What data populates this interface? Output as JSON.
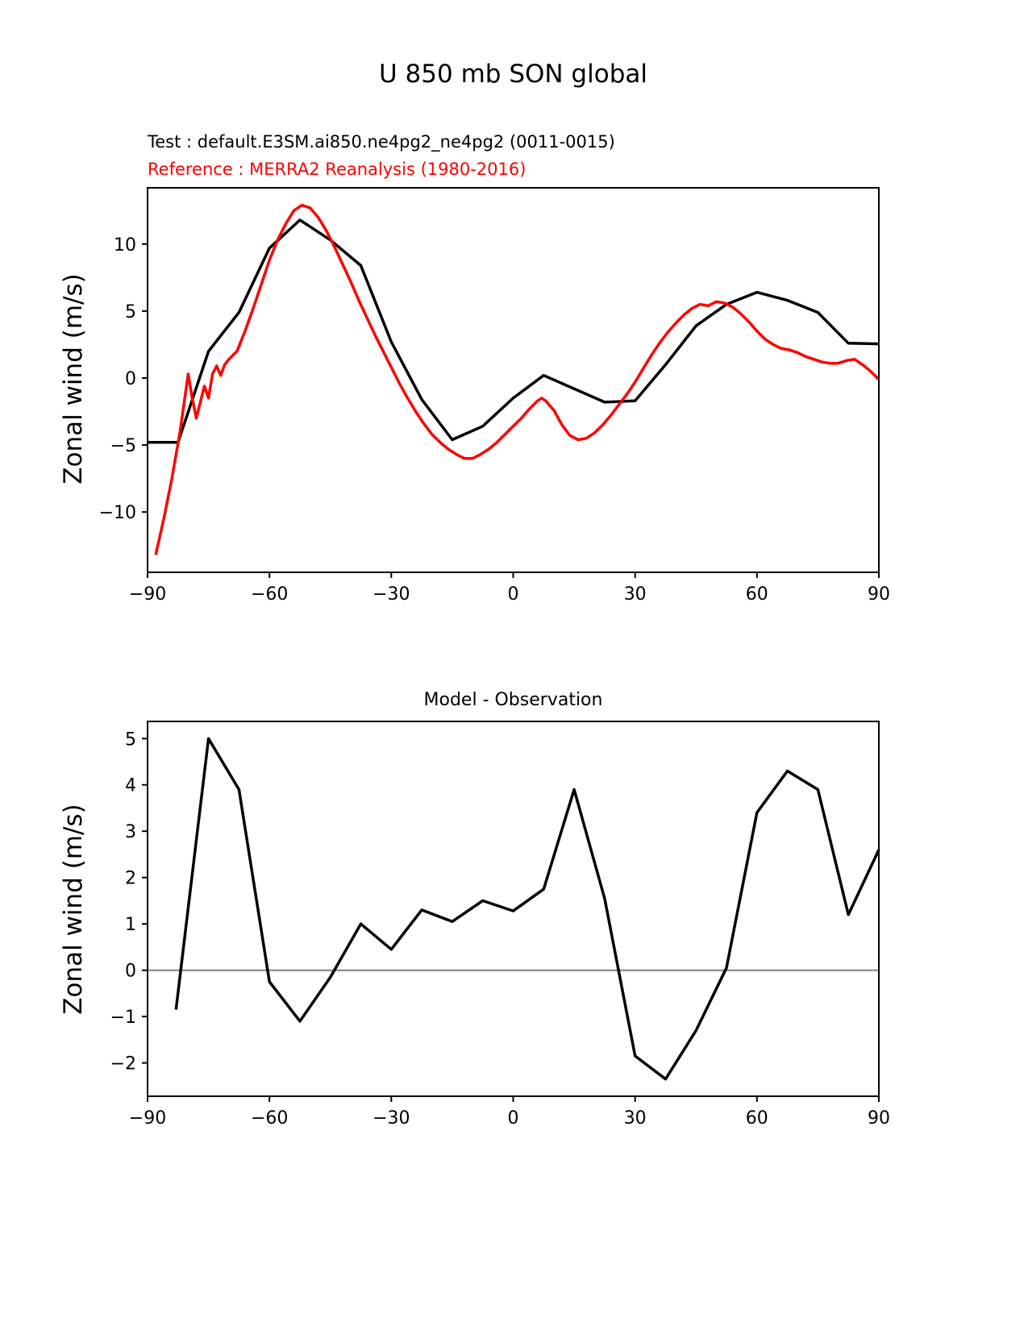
{
  "page_title": "U 850 mb SON global",
  "legend": {
    "test_label": "Test : default.E3SM.ai850.ne4pg2_ne4pg2 (0011-0015)",
    "reference_label": "Reference : MERRA2 Reanalysis (1980-2016)",
    "test_color": "#000000",
    "reference_color": "#ff0000"
  },
  "chart_data": [
    {
      "type": "line",
      "title": "",
      "xlabel": "",
      "ylabel": "Zonal wind (m/s)",
      "xlim": [
        -90,
        90
      ],
      "ylim": [
        -14.5,
        14.2
      ],
      "xticks": [
        -90,
        -60,
        -30,
        0,
        30,
        60,
        90
      ],
      "yticks": [
        -10,
        -5,
        0,
        5,
        10
      ],
      "grid": false,
      "legend_position": "top-left-above-axes",
      "series": [
        {
          "name": "test-model",
          "color": "#000000",
          "width": 3.5,
          "x": [
            -90,
            -82.5,
            -75,
            -67.5,
            -60,
            -52.5,
            -45,
            -37.5,
            -30,
            -22.5,
            -15,
            -7.5,
            0,
            7.5,
            15,
            22.5,
            30,
            37.5,
            45,
            52.5,
            60,
            67.5,
            75,
            82.5,
            90
          ],
          "y": [
            -4.8,
            -4.8,
            2.0,
            4.9,
            9.7,
            11.8,
            10.3,
            8.4,
            2.7,
            -1.6,
            -4.6,
            -3.6,
            -1.5,
            0.2,
            -0.8,
            -1.8,
            -1.7,
            1.0,
            3.9,
            5.5,
            6.4,
            5.8,
            4.9,
            2.6,
            2.55
          ]
        },
        {
          "name": "reference-merra2",
          "color": "#ff0000",
          "width": 3.5,
          "x": [
            -88,
            -86,
            -84,
            -82,
            -80,
            -79,
            -78,
            -77,
            -76,
            -75,
            -74,
            -73,
            -72,
            -71,
            -70,
            -68,
            -66,
            -64,
            -62,
            -60,
            -58,
            -56,
            -54,
            -52,
            -50,
            -48,
            -46,
            -44,
            -42,
            -40,
            -38,
            -36,
            -34,
            -32,
            -30,
            -28,
            -26,
            -24,
            -22,
            -20,
            -18,
            -16,
            -14,
            -12,
            -10,
            -8,
            -6,
            -4,
            -2,
            0,
            2,
            4,
            6,
            7,
            8,
            10,
            12,
            14,
            16,
            18,
            20,
            22,
            24,
            26,
            28,
            30,
            32,
            34,
            36,
            38,
            40,
            42,
            44,
            46,
            48,
            50,
            52,
            54,
            56,
            58,
            60,
            62,
            64,
            66,
            68,
            70,
            72,
            74,
            76,
            78,
            80,
            82,
            84,
            86,
            88,
            90
          ],
          "y": [
            -13.2,
            -10.5,
            -7.5,
            -4.0,
            0.3,
            -1.5,
            -3.0,
            -1.8,
            -0.6,
            -1.5,
            0.3,
            0.9,
            0.2,
            1.0,
            1.4,
            2.0,
            3.5,
            5.2,
            7.0,
            8.8,
            10.3,
            11.5,
            12.5,
            12.9,
            12.7,
            12.0,
            11.0,
            9.8,
            8.5,
            7.2,
            5.8,
            4.5,
            3.2,
            2.0,
            0.8,
            -0.4,
            -1.5,
            -2.5,
            -3.4,
            -4.2,
            -4.8,
            -5.3,
            -5.7,
            -6.0,
            -6.0,
            -5.7,
            -5.3,
            -4.8,
            -4.2,
            -3.6,
            -3.0,
            -2.3,
            -1.7,
            -1.5,
            -1.7,
            -2.4,
            -3.5,
            -4.3,
            -4.6,
            -4.5,
            -4.1,
            -3.5,
            -2.8,
            -2.0,
            -1.2,
            -0.3,
            0.7,
            1.7,
            2.6,
            3.4,
            4.1,
            4.7,
            5.2,
            5.5,
            5.4,
            5.7,
            5.6,
            5.3,
            4.8,
            4.2,
            3.5,
            2.9,
            2.5,
            2.2,
            2.1,
            1.9,
            1.6,
            1.4,
            1.2,
            1.1,
            1.1,
            1.3,
            1.4,
            1.0,
            0.5,
            -0.1
          ]
        }
      ]
    },
    {
      "type": "line",
      "title": "Model - Observation",
      "xlabel": "",
      "ylabel": "Zonal wind (m/s)",
      "xlim": [
        -90,
        90
      ],
      "ylim": [
        -2.72,
        5.37
      ],
      "xticks": [
        -90,
        -60,
        -30,
        0,
        30,
        60,
        90
      ],
      "yticks": [
        -2,
        -1,
        0,
        1,
        2,
        3,
        4,
        5
      ],
      "grid": false,
      "zero_line": true,
      "zero_line_color": "#808080",
      "series": [
        {
          "name": "model-minus-observation",
          "color": "#000000",
          "width": 3.5,
          "x": [
            -83,
            -75,
            -67.5,
            -60,
            -52.5,
            -45,
            -37.5,
            -30,
            -22.5,
            -15,
            -7.5,
            0,
            7.5,
            15,
            22.5,
            30,
            37.5,
            45,
            52.5,
            60,
            67.5,
            75,
            82.5,
            90
          ],
          "y": [
            -0.85,
            5.0,
            3.9,
            -0.25,
            -1.1,
            -0.15,
            1.0,
            0.45,
            1.3,
            1.05,
            1.5,
            1.28,
            1.75,
            3.9,
            1.55,
            -1.85,
            -2.35,
            -1.3,
            0.05,
            3.4,
            4.3,
            3.9,
            1.2,
            2.6
          ]
        }
      ]
    }
  ]
}
